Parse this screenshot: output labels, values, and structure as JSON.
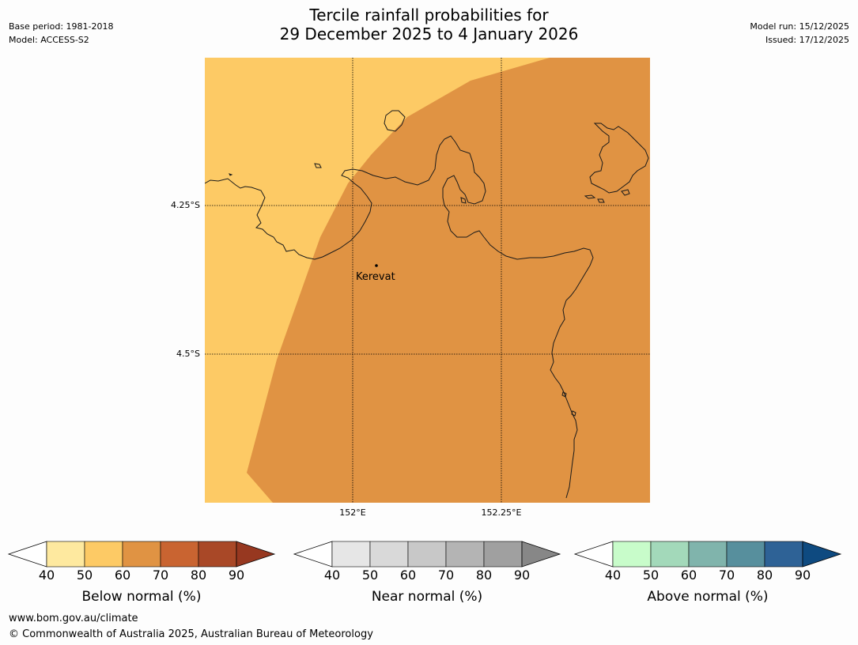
{
  "header": {
    "base_period": "Base period: 1981-2018",
    "model": "Model: ACCESS-S2",
    "title_line1": "Tercile rainfall probabilities for",
    "title_line2": "29 December 2025 to 4 January 2026",
    "model_run": "Model run: 15/12/2025",
    "issued": "Issued: 17/12/2025"
  },
  "map": {
    "latitude_labels": [
      "4.25°S",
      "4.5°S"
    ],
    "longitude_labels": [
      "152°E",
      "152.25°E"
    ],
    "place": "Kerevat",
    "regions": [
      {
        "category": "Below normal",
        "range": "50-60",
        "color": "#fdca65"
      },
      {
        "category": "Below normal",
        "range": "60-70",
        "color": "#e09343"
      }
    ]
  },
  "colorbars": [
    {
      "title": "Below normal (%)",
      "ticks": [
        "40",
        "50",
        "60",
        "70",
        "80",
        "90"
      ],
      "colors": [
        "#ffffff",
        "#fee99f",
        "#fdca65",
        "#e09343",
        "#c96431",
        "#a94827",
        "#973820"
      ]
    },
    {
      "title": "Near normal (%)",
      "ticks": [
        "40",
        "50",
        "60",
        "70",
        "80",
        "90"
      ],
      "colors": [
        "#ffffff",
        "#e6e6e6",
        "#d9d9d9",
        "#c8c8c8",
        "#b4b4b4",
        "#a0a0a0",
        "#878787"
      ]
    },
    {
      "title": "Above normal (%)",
      "ticks": [
        "40",
        "50",
        "60",
        "70",
        "80",
        "90"
      ],
      "colors": [
        "#ffffff",
        "#c8fcca",
        "#a3d9ba",
        "#80b4ac",
        "#578f9d",
        "#2e6296",
        "#0e4a80"
      ]
    }
  ],
  "footer": {
    "url": "www.bom.gov.au/climate",
    "copyright": "© Commonwealth of Australia 2025, Australian Bureau of Meteorology"
  }
}
